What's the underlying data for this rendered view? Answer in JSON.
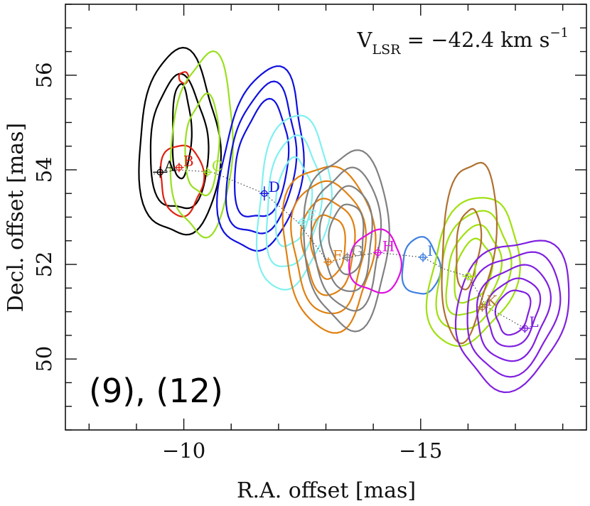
{
  "chart_data": {
    "type": "contour_map",
    "title": "",
    "xlabel": "R.A. offset [mas]",
    "ylabel": "Decl. offset [mas]",
    "annotation_velocity": "V_LSR = -42.4 km s^-1",
    "velocity_parts": {
      "v": "V",
      "sub": "LSR",
      "eq": " = −42.4  km  s",
      "sup": "−1"
    },
    "panel_label": "(9), (12)",
    "xlim": [
      -7.5,
      -18.5
    ],
    "ylim": [
      48.5,
      57.5
    ],
    "x_reversed": true,
    "x_major_ticks": [
      -10,
      -15
    ],
    "x_tick_labels": [
      "−10",
      "−15"
    ],
    "x_minor_step": 1,
    "y_major_ticks": [
      50,
      52,
      54,
      56
    ],
    "y_tick_labels": [
      "50",
      "52",
      "54",
      "56"
    ],
    "y_minor_step": 0.5,
    "grid": false,
    "colors": {
      "A": "#000000",
      "B": "#e02010",
      "C": "#99e020",
      "D": "#1010e0",
      "E": "#80f0f0",
      "F": "#e08010",
      "G": "#808080",
      "H": "#e010e0",
      "I": "#4080e0",
      "J": "#a0e010",
      "K": "#b07030",
      "L": "#8020e0"
    },
    "spots": [
      {
        "name": "A",
        "x": -9.5,
        "y": 53.95,
        "err_x": 0.15,
        "err_y": 0.12
      },
      {
        "name": "B",
        "x": -9.9,
        "y": 54.05,
        "err_x": 0.1,
        "err_y": 0.1
      },
      {
        "name": "C",
        "x": -10.5,
        "y": 53.95,
        "err_x": 0.1,
        "err_y": 0.1
      },
      {
        "name": "D",
        "x": -11.7,
        "y": 53.5,
        "err_x": 0.1,
        "err_y": 0.15
      },
      {
        "name": "E",
        "x": -12.5,
        "y": 52.9,
        "err_x": 0.1,
        "err_y": 0.1
      },
      {
        "name": "F",
        "x": -13.05,
        "y": 52.05,
        "err_x": 0.1,
        "err_y": 0.1
      },
      {
        "name": "G",
        "x": -13.45,
        "y": 52.15,
        "err_x": 0.1,
        "err_y": 0.1
      },
      {
        "name": "H",
        "x": -14.1,
        "y": 52.25,
        "err_x": 0.1,
        "err_y": 0.12
      },
      {
        "name": "I",
        "x": -15.05,
        "y": 52.15,
        "err_x": 0.1,
        "err_y": 0.1
      },
      {
        "name": "J",
        "x": -16.0,
        "y": 51.75,
        "err_x": 0.12,
        "err_y": 0.1
      },
      {
        "name": "K",
        "x": -16.3,
        "y": 51.1,
        "err_x": 0.1,
        "err_y": 0.1
      },
      {
        "name": "L",
        "x": -17.2,
        "y": 50.65,
        "err_x": 0.12,
        "err_y": 0.1
      }
    ],
    "track": [
      [
        -9.3,
        53.9
      ],
      [
        -9.9,
        54.0
      ],
      [
        -10.6,
        53.95
      ],
      [
        -11.7,
        53.5
      ],
      [
        -12.4,
        52.9
      ],
      [
        -13.05,
        52.05
      ],
      [
        -13.45,
        52.15
      ],
      [
        -14.1,
        52.25
      ],
      [
        -15.05,
        52.15
      ],
      [
        -15.5,
        51.9
      ],
      [
        -16.0,
        51.75
      ],
      [
        -16.4,
        51.1
      ],
      [
        -17.2,
        50.65
      ]
    ],
    "contours": [
      {
        "spot": "A",
        "cx": -9.9,
        "cy": 54.5,
        "rx": 0.85,
        "ry": 1.95,
        "rot": 0,
        "levels": [
          1.0,
          0.72
        ]
      },
      {
        "spot": "A-core",
        "cx": -9.95,
        "cy": 54.8,
        "rx": 0.2,
        "ry": 1.0,
        "rot": 0,
        "levels": [
          1.0
        ]
      },
      {
        "spot": "B",
        "cx": -9.95,
        "cy": 53.8,
        "rx": 0.45,
        "ry": 0.75,
        "rot": 0,
        "levels": [
          1.0
        ]
      },
      {
        "spot": "B2",
        "cx": -10.0,
        "cy": 55.95,
        "rx": 0.1,
        "ry": 0.12,
        "rot": 0,
        "levels": [
          1.0
        ]
      },
      {
        "spot": "C",
        "cx": -10.4,
        "cy": 54.5,
        "rx": 0.65,
        "ry": 1.9,
        "rot": 0.05,
        "levels": [
          1.0,
          0.55
        ]
      },
      {
        "spot": "D",
        "cx": -11.65,
        "cy": 54.15,
        "rx": 0.85,
        "ry": 1.95,
        "rot": 0.15,
        "levels": [
          1.0,
          0.82,
          0.64
        ]
      },
      {
        "spot": "E",
        "cx": -12.3,
        "cy": 53.3,
        "rx": 0.75,
        "ry": 1.85,
        "rot": 0.1,
        "levels": [
          1.0,
          0.75,
          0.5
        ]
      },
      {
        "spot": "F",
        "cx": -13.05,
        "cy": 52.4,
        "rx": 0.95,
        "ry": 1.75,
        "rot": -0.05,
        "levels": [
          1.0,
          0.8,
          0.58,
          0.38
        ]
      },
      {
        "spot": "G",
        "cx": -13.45,
        "cy": 52.55,
        "rx": 0.9,
        "ry": 1.85,
        "rot": 0,
        "levels": [
          1.0,
          0.8,
          0.6,
          0.4
        ]
      },
      {
        "spot": "H",
        "cx": -14.05,
        "cy": 52.05,
        "rx": 0.55,
        "ry": 0.65,
        "rot": 0,
        "levels": [
          1.0
        ]
      },
      {
        "spot": "I",
        "cx": -15.0,
        "cy": 51.95,
        "rx": 0.4,
        "ry": 0.6,
        "rot": 0,
        "levels": [
          1.0
        ]
      },
      {
        "spot": "J",
        "cx": -16.1,
        "cy": 51.85,
        "rx": 0.9,
        "ry": 1.6,
        "rot": 0.25,
        "levels": [
          1.0,
          0.8,
          0.6,
          0.42
        ]
      },
      {
        "spot": "K",
        "cx": -16.0,
        "cy": 52.35,
        "rx": 0.55,
        "ry": 1.9,
        "rot": 0.1,
        "levels": [
          1.0,
          0.45
        ]
      },
      {
        "spot": "L",
        "cx": -16.95,
        "cy": 51.0,
        "rx": 1.15,
        "ry": 1.6,
        "rot": 0.3,
        "levels": [
          1.0,
          0.82,
          0.64,
          0.46,
          0.3
        ]
      }
    ]
  }
}
